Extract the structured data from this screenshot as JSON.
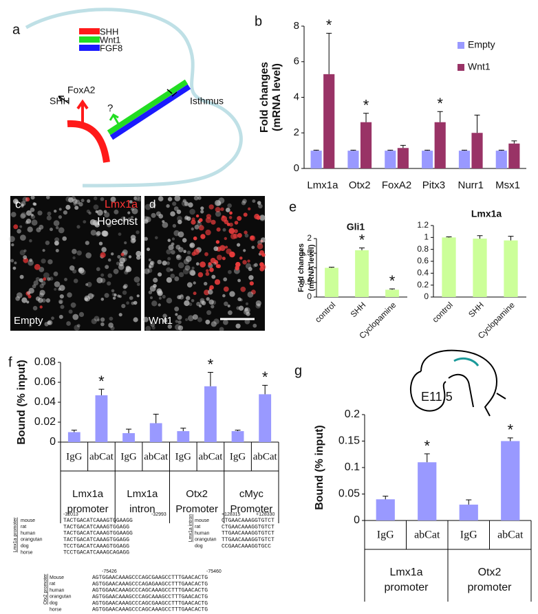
{
  "panel_labels": [
    "a",
    "b",
    "c",
    "d",
    "e",
    "f",
    "g"
  ],
  "diagram_a": {
    "legend": [
      "SHH",
      "Wnt1",
      "FGF8"
    ],
    "foxa2": "FoxA2",
    "shh": "SHH",
    "question": "?",
    "isthmus": "Isthmus"
  },
  "images": {
    "stain_1": "Lmx1a",
    "stain_2": "Hoechst",
    "condition_c": "Empty",
    "condition_d": "Wnt1"
  },
  "inset_g": {
    "stage": "E11.5"
  },
  "alignments": [
    {
      "title": "Lmx1a promoter",
      "start": "-32013",
      "end": "-32993",
      "rows": [
        {
          "species": "mouse",
          "sequence": "TACTGACATCAAAGTGGAAGG"
        },
        {
          "species": "rat",
          "sequence": "TACTGACATCAAAGTGGAGG"
        },
        {
          "species": "human",
          "sequence": "TACTGACATCAAAGTGGAAGG"
        },
        {
          "species": "orangutan",
          "sequence": "TACTGACATCAAAGTGGAGG"
        },
        {
          "species": "dog",
          "sequence": "TCCTGACATCAAAGTGGAGG"
        },
        {
          "species": "horse",
          "sequence": "TCCTGACATCAAAGCAGAGG"
        }
      ]
    },
    {
      "title": "Lmx1a intron",
      "start": "+128315",
      "end": "+128330",
      "rows": [
        {
          "species": "mouse",
          "sequence": "CTGAACAAAGGTGTCT"
        },
        {
          "species": "rat",
          "sequence": "CTGAACAAAGGTGTCT"
        },
        {
          "species": "human",
          "sequence": "TTGAACAAAGGTGTCT"
        },
        {
          "species": "orangutan",
          "sequence": "TTGAACAAAGGTGTCT"
        },
        {
          "species": "dog",
          "sequence": "CCGAACAAAGGTGCC"
        }
      ]
    },
    {
      "title": "Otx2 promoter",
      "start": "-75426",
      "end": "-75460",
      "rows": [
        {
          "species": "Mouse",
          "sequence": "AGTGGAACAAAGCCCAGCGAAGCCTTTGAACACTG"
        },
        {
          "species": "rat",
          "sequence": "AGTGGAACAAAGCCCAGAGAAGCCTTTGAACACTG"
        },
        {
          "species": "human",
          "sequence": "AGTGGAACAAAGCCCAGCAAAGCCTTTGAACACTG"
        },
        {
          "species": "orangutan",
          "sequence": "AGTGGAACAAAGCCCAGCAAAGCCTTTGAACACTG"
        },
        {
          "species": "dog",
          "sequence": "AGTGGAACAAAGCCCAGCGAAGCCTTTGAACACTG"
        },
        {
          "species": "horse",
          "sequence": "AGTGGAACAAAGCCCAGCAAAGCCTTTGAACACTG"
        }
      ]
    }
  ],
  "chart_data": [
    {
      "type": "bar",
      "ylabel": [
        "Fold changes",
        "(mRNA level)"
      ],
      "categories": [
        "Lmx1a",
        "Otx2",
        "FoxA2",
        "Pitx3",
        "Nurr1",
        "Msx1"
      ],
      "series": [
        {
          "name": "Empty",
          "color": "#9999ff",
          "values": [
            1,
            1,
            1,
            1,
            1,
            1
          ],
          "errors": [
            0.03,
            0.03,
            0.03,
            0.03,
            0.03,
            0.03
          ]
        },
        {
          "name": "Wnt1",
          "color": "#993366",
          "values": [
            5.3,
            2.6,
            1.15,
            2.6,
            2.0,
            1.4
          ],
          "errors": [
            2.3,
            0.5,
            0.15,
            0.6,
            1.0,
            0.15
          ],
          "significance": [
            "*",
            "*",
            null,
            "*",
            null,
            null
          ]
        }
      ],
      "ylim": [
        0,
        8
      ],
      "yticks": [
        0,
        2,
        4,
        6,
        8
      ],
      "legend": "upper right"
    },
    {
      "type": "bar",
      "title": "Gli1",
      "ylabel": [
        "Fold changes",
        "(mRNA level)"
      ],
      "categories": [
        "control",
        "SHH",
        "Cyclopamine"
      ],
      "series": [
        {
          "color": "#ccff99",
          "values": [
            1,
            1.6,
            0.25
          ],
          "errors": [
            0.02,
            0.08,
            0.03
          ],
          "significance": [
            null,
            "*",
            "*"
          ]
        }
      ],
      "ylim": [
        0,
        2
      ],
      "yticks": [
        0,
        0.5,
        1,
        1.5,
        2
      ]
    },
    {
      "type": "bar",
      "title": "Lmx1a",
      "categories": [
        "control",
        "SHH",
        "Cyclopamine"
      ],
      "series": [
        {
          "color": "#ccff99",
          "values": [
            1,
            0.98,
            0.95
          ],
          "errors": [
            0.01,
            0.05,
            0.07
          ]
        }
      ],
      "ylim": [
        0,
        1.2
      ],
      "yticks": [
        0,
        0.2,
        0.4,
        0.6,
        0.8,
        1,
        1.2
      ]
    },
    {
      "type": "bar",
      "ylabel": [
        "Bound (% input)"
      ],
      "categories": [
        "IgG",
        "abCat",
        "IgG",
        "abCat",
        "IgG",
        "abCat",
        "IgG",
        "abCat"
      ],
      "groups": [
        [
          "Lmx1a",
          "promoter"
        ],
        [
          "Lmx1a",
          "intron"
        ],
        [
          "Otx2",
          "Promoter"
        ],
        [
          "cMyc",
          "Promoter"
        ]
      ],
      "series": [
        {
          "color": "#9999ff",
          "values": [
            0.01,
            0.047,
            0.009,
            0.019,
            0.011,
            0.056,
            0.011,
            0.048
          ],
          "errors": [
            0.002,
            0.006,
            0.004,
            0.009,
            0.003,
            0.014,
            0.001,
            0.009
          ],
          "significance": [
            null,
            "*",
            null,
            null,
            null,
            "*",
            null,
            "*"
          ]
        }
      ],
      "ylim": [
        0,
        0.08
      ],
      "yticks": [
        0,
        0.02,
        0.04,
        0.06,
        0.08
      ]
    },
    {
      "type": "bar",
      "ylabel": [
        "Bound (% input)"
      ],
      "categories": [
        "IgG",
        "abCat",
        "IgG",
        "abCat"
      ],
      "groups": [
        [
          "Lmx1a",
          "promoter"
        ],
        [
          "Otx2",
          "promoter"
        ]
      ],
      "series": [
        {
          "color": "#9999ff",
          "values": [
            0.04,
            0.11,
            0.03,
            0.15
          ],
          "errors": [
            0.006,
            0.016,
            0.009,
            0.006
          ],
          "significance": [
            null,
            "*",
            null,
            "*"
          ]
        }
      ],
      "ylim": [
        0,
        0.2
      ],
      "yticks": [
        0,
        0.05,
        0.1,
        0.15,
        0.2
      ]
    }
  ]
}
